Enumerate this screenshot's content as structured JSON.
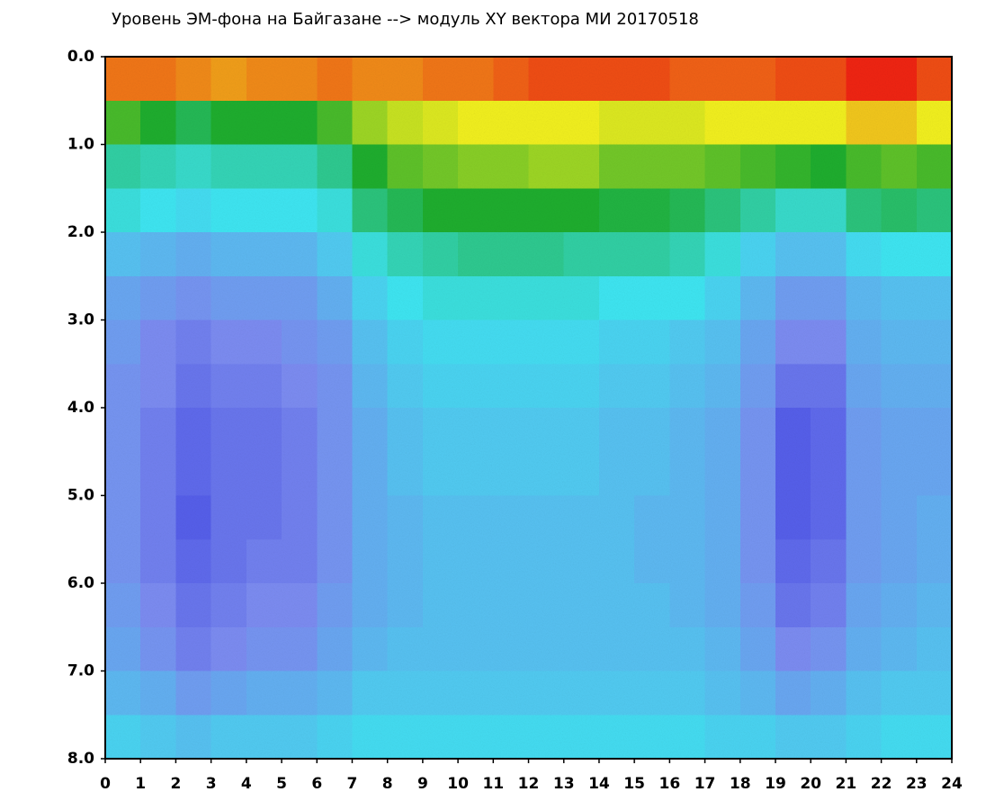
{
  "chart_data": {
    "type": "heatmap",
    "title": "Уровень ЭМ-фона на Байгазане  -->  модуль XY вектора МИ  20170518",
    "xlim": [
      0,
      24
    ],
    "ylim": [
      0,
      8
    ],
    "y_inverted": true,
    "xticks": [
      0,
      1,
      2,
      3,
      4,
      5,
      6,
      7,
      8,
      9,
      10,
      11,
      12,
      13,
      14,
      15,
      16,
      17,
      18,
      19,
      20,
      21,
      22,
      23,
      24
    ],
    "yticks": [
      {
        "value": 0,
        "label": "0.0"
      },
      {
        "value": 1,
        "label": "1.0"
      },
      {
        "value": 2,
        "label": "2.0"
      },
      {
        "value": 3,
        "label": "3.0"
      },
      {
        "value": 4,
        "label": "4.0"
      },
      {
        "value": 5,
        "label": "5.0"
      },
      {
        "value": 6,
        "label": "6.0"
      },
      {
        "value": 7,
        "label": "7.0"
      },
      {
        "value": 8,
        "label": "8.0"
      }
    ],
    "xbins": [
      0,
      1,
      2,
      3,
      4,
      5,
      6,
      7,
      8,
      9,
      10,
      11,
      12,
      13,
      14,
      15,
      16,
      17,
      18,
      19,
      20,
      21,
      22,
      23,
      24
    ],
    "ybins": [
      0,
      0.5,
      1,
      1.5,
      2,
      2.5,
      3,
      3.5,
      4,
      4.5,
      5,
      5.5,
      6,
      6.5,
      7,
      7.5,
      8
    ],
    "colorscale": [
      "#1c1ce0",
      "#7c8cf2",
      "#3ee6f2",
      "#1eae2e",
      "#f2f01e",
      "#f02412"
    ],
    "values": [
      [
        4.6,
        4.6,
        4.5,
        4.4,
        4.5,
        4.5,
        4.6,
        4.5,
        4.5,
        4.6,
        4.6,
        4.7,
        4.8,
        4.8,
        4.8,
        4.8,
        4.7,
        4.7,
        4.7,
        4.8,
        4.8,
        5,
        5,
        4.8
      ],
      [
        3.2,
        3,
        2.8,
        3,
        3,
        3,
        3.2,
        3.6,
        3.8,
        3.9,
        4,
        4,
        4,
        4,
        3.9,
        3.9,
        3.9,
        4,
        4,
        4,
        4,
        4.2,
        4.2,
        4
      ],
      [
        2.4,
        2.3,
        2.2,
        2.3,
        2.3,
        2.3,
        2.5,
        3,
        3.3,
        3.4,
        3.5,
        3.5,
        3.6,
        3.6,
        3.4,
        3.4,
        3.4,
        3.3,
        3.2,
        3.1,
        3,
        3.2,
        3.3,
        3.2
      ],
      [
        2.1,
        2,
        1.9,
        2,
        2,
        2,
        2.1,
        2.6,
        2.8,
        3,
        3,
        3,
        3,
        3,
        2.9,
        2.9,
        2.8,
        2.6,
        2.4,
        2.2,
        2.2,
        2.6,
        2.7,
        2.6
      ],
      [
        1.6,
        1.5,
        1.4,
        1.5,
        1.5,
        1.5,
        1.7,
        2.1,
        2.3,
        2.4,
        2.5,
        2.5,
        2.5,
        2.4,
        2.4,
        2.4,
        2.3,
        2.1,
        1.8,
        1.6,
        1.6,
        1.9,
        2,
        2
      ],
      [
        1.3,
        1.2,
        1.1,
        1.2,
        1.2,
        1.2,
        1.4,
        1.8,
        2,
        2.1,
        2.1,
        2.1,
        2.1,
        2.1,
        2,
        2,
        2,
        1.8,
        1.5,
        1.2,
        1.2,
        1.5,
        1.6,
        1.6
      ],
      [
        1.2,
        1,
        0.9,
        1,
        1,
        1.1,
        1.2,
        1.6,
        1.8,
        1.9,
        1.9,
        1.9,
        1.9,
        1.9,
        1.8,
        1.8,
        1.7,
        1.6,
        1.3,
        1,
        1,
        1.4,
        1.5,
        1.5
      ],
      [
        1.1,
        1,
        0.8,
        0.9,
        0.9,
        1,
        1.1,
        1.5,
        1.7,
        1.8,
        1.8,
        1.8,
        1.8,
        1.8,
        1.7,
        1.7,
        1.6,
        1.5,
        1.2,
        0.8,
        0.8,
        1.3,
        1.4,
        1.4
      ],
      [
        1.1,
        0.9,
        0.7,
        0.8,
        0.8,
        0.9,
        1.1,
        1.4,
        1.6,
        1.7,
        1.7,
        1.7,
        1.7,
        1.7,
        1.6,
        1.6,
        1.5,
        1.4,
        1.1,
        0.6,
        0.7,
        1.2,
        1.3,
        1.3
      ],
      [
        1.1,
        0.9,
        0.7,
        0.8,
        0.8,
        0.9,
        1.1,
        1.4,
        1.6,
        1.7,
        1.7,
        1.7,
        1.7,
        1.7,
        1.6,
        1.6,
        1.5,
        1.4,
        1.1,
        0.6,
        0.7,
        1.2,
        1.3,
        1.3
      ],
      [
        1.1,
        0.9,
        0.6,
        0.8,
        0.8,
        0.9,
        1.1,
        1.4,
        1.5,
        1.6,
        1.6,
        1.6,
        1.6,
        1.6,
        1.6,
        1.5,
        1.5,
        1.4,
        1.1,
        0.6,
        0.7,
        1.2,
        1.3,
        1.4
      ],
      [
        1.1,
        0.9,
        0.7,
        0.8,
        0.9,
        0.9,
        1.1,
        1.4,
        1.5,
        1.6,
        1.6,
        1.6,
        1.6,
        1.6,
        1.6,
        1.5,
        1.5,
        1.4,
        1.1,
        0.7,
        0.8,
        1.2,
        1.3,
        1.4
      ],
      [
        1.2,
        1,
        0.8,
        0.9,
        1,
        1,
        1.2,
        1.4,
        1.5,
        1.6,
        1.6,
        1.6,
        1.6,
        1.6,
        1.6,
        1.6,
        1.5,
        1.4,
        1.2,
        0.8,
        0.9,
        1.3,
        1.4,
        1.5
      ],
      [
        1.3,
        1.1,
        0.9,
        1,
        1.1,
        1.1,
        1.3,
        1.5,
        1.6,
        1.6,
        1.6,
        1.6,
        1.6,
        1.6,
        1.6,
        1.6,
        1.6,
        1.5,
        1.3,
        1,
        1.1,
        1.4,
        1.5,
        1.6
      ],
      [
        1.5,
        1.4,
        1.2,
        1.3,
        1.4,
        1.4,
        1.5,
        1.7,
        1.7,
        1.7,
        1.7,
        1.7,
        1.7,
        1.7,
        1.7,
        1.7,
        1.7,
        1.6,
        1.5,
        1.3,
        1.4,
        1.6,
        1.7,
        1.7
      ],
      [
        1.8,
        1.7,
        1.6,
        1.7,
        1.7,
        1.7,
        1.8,
        1.9,
        1.9,
        1.9,
        1.9,
        1.9,
        1.9,
        1.9,
        1.9,
        1.9,
        1.9,
        1.8,
        1.8,
        1.7,
        1.7,
        1.8,
        1.9,
        1.9
      ]
    ]
  }
}
